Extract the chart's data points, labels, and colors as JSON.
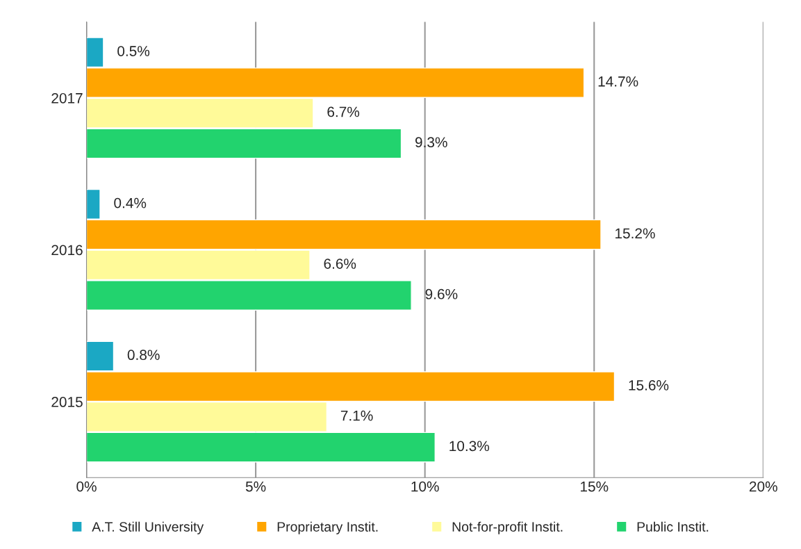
{
  "chart_data": {
    "type": "bar",
    "orientation": "horizontal",
    "categories": [
      "2017",
      "2016",
      "2015"
    ],
    "series": [
      {
        "name": "A.T. Still University",
        "color": "#1ba8c4",
        "values": [
          0.5,
          0.4,
          0.8
        ],
        "value_labels": [
          "0.5%",
          "0.4%",
          "0.8%"
        ]
      },
      {
        "name": "Proprietary Instit.",
        "color": "#ffa500",
        "values": [
          14.7,
          15.2,
          15.6
        ],
        "value_labels": [
          "14.7%",
          "15.2%",
          "15.6%"
        ]
      },
      {
        "name": "Not-for-profit Instit.",
        "color": "#fffa99",
        "values": [
          6.7,
          6.6,
          7.1
        ],
        "value_labels": [
          "6.7%",
          "6.6%",
          "7.1%"
        ]
      },
      {
        "name": "Public Instit.",
        "color": "#22d36e",
        "values": [
          9.3,
          9.6,
          10.3
        ],
        "value_labels": [
          "9.3%",
          "9.6%",
          "10.3%"
        ]
      }
    ],
    "xlim": [
      0,
      20
    ],
    "xticks": [
      {
        "value": 0,
        "label": "0%"
      },
      {
        "value": 5,
        "label": "5%"
      },
      {
        "value": 10,
        "label": "10%"
      },
      {
        "value": 15,
        "label": "15%"
      },
      {
        "value": 20,
        "label": "20%"
      }
    ],
    "grid": "x",
    "legend": "bottom"
  }
}
